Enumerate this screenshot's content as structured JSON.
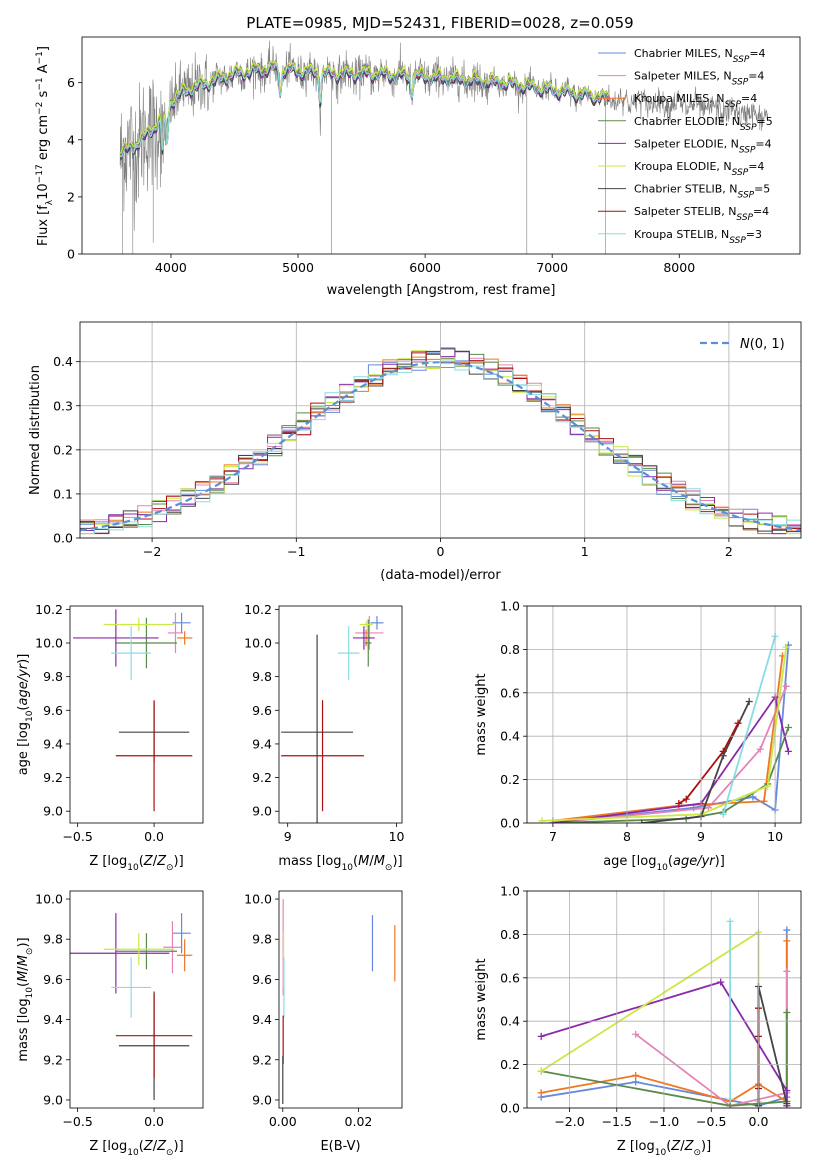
{
  "title": "PLATE=0985, MJD=52431, FIBERID=0028, z=0.059",
  "models": [
    {
      "id": "cm",
      "name": "Chabrier MILES",
      "nssp": "4",
      "color": "#6688dd"
    },
    {
      "id": "sm",
      "name": "Salpeter MILES",
      "nssp": "4",
      "color": "#e583b8"
    },
    {
      "id": "km",
      "name": "Kroupa MILES",
      "nssp": "4",
      "color": "#ee7722"
    },
    {
      "id": "ce",
      "name": "Chabrier ELODIE",
      "nssp": "5",
      "color": "#5a8a4a"
    },
    {
      "id": "se",
      "name": "Salpeter ELODIE",
      "nssp": "4",
      "color": "#8a2aaa"
    },
    {
      "id": "ke",
      "name": "Kroupa ELODIE",
      "nssp": "4",
      "color": "#cce844"
    },
    {
      "id": "cs",
      "name": "Chabrier STELIB",
      "nssp": "5",
      "color": "#444444"
    },
    {
      "id": "ss",
      "name": "Salpeter STELIB",
      "nssp": "4",
      "color": "#aa1111"
    },
    {
      "id": "ks",
      "name": "Kroupa STELIB",
      "nssp": "3",
      "color": "#88dde0"
    }
  ],
  "chart_data": [
    {
      "type": "line",
      "panel": "spectrum",
      "xlabel": "wavelength [Angstrom, rest frame]",
      "ylabel": "Flux [f_λ 10^-17 erg cm^-2 s^-1 A^-1]",
      "xlim": [
        3300,
        8950
      ],
      "ylim": [
        0,
        7.6
      ],
      "xticks": [
        "4000",
        "5000",
        "6000",
        "7000",
        "8000"
      ],
      "yticks": [
        "0",
        "2",
        "4",
        "6"
      ],
      "data_color": "#808080",
      "continuum": {
        "x": [
          3600,
          3750,
          3900,
          4000,
          4100,
          4300,
          4500,
          4800,
          5000,
          5300,
          5600,
          6000,
          6300,
          6600,
          6900,
          7200,
          7500,
          7800,
          8100,
          8400,
          8700
        ],
        "y": [
          3.5,
          3.9,
          4.6,
          5.3,
          5.7,
          6.0,
          6.3,
          6.5,
          6.4,
          6.3,
          6.3,
          6.2,
          6.1,
          6.0,
          5.8,
          5.6,
          5.4,
          5.3,
          5.2,
          5.0,
          4.8
        ]
      },
      "features": [
        {
          "x": 3933,
          "depth": 1.3
        },
        {
          "x": 3968,
          "depth": 1.2
        },
        {
          "x": 4861,
          "depth": 0.8
        },
        {
          "x": 5175,
          "depth": 0.9
        },
        {
          "x": 5895,
          "depth": 0.6
        }
      ],
      "noise_spikes": [
        {
          "x": 3620,
          "y": 0
        },
        {
          "x": 3700,
          "y": 0
        },
        {
          "x": 3860,
          "y": 0.4
        },
        {
          "x": 5265,
          "y": 0
        },
        {
          "x": 6800,
          "y": 0
        },
        {
          "x": 7420,
          "y": 0
        }
      ],
      "model_offsets": [
        0.0,
        0.05,
        -0.05,
        0.08,
        -0.08,
        0.12,
        -0.1,
        0.03,
        -0.03
      ]
    },
    {
      "type": "histogram",
      "panel": "residuals",
      "xlabel": "(data-model)/error",
      "ylabel": "Normed distribution",
      "xlim": [
        -2.5,
        2.5
      ],
      "ylim": [
        0,
        0.49
      ],
      "xticks": [
        "−2",
        "−1",
        "0",
        "1",
        "2"
      ],
      "yticks": [
        "0.0",
        "0.1",
        "0.2",
        "0.3",
        "0.4"
      ],
      "bin_width": 0.1,
      "gaussian_label": "N(0,1)",
      "gaussian_color": "#5b8fd6"
    },
    {
      "type": "scatter",
      "panel": "age-vs-Z",
      "xlabel": "Z [log10(Z/Z⊙)]",
      "ylabel": "age [log10(age/yr)]",
      "xlim": [
        -0.55,
        0.32
      ],
      "ylim": [
        8.93,
        10.22
      ],
      "xticks": [
        "−0.5",
        "0.0"
      ],
      "yticks": [
        "9.0",
        "9.2",
        "9.4",
        "9.6",
        "9.8",
        "10.0",
        "10.2"
      ],
      "points": [
        {
          "m": "cm",
          "x": 0.18,
          "y": 10.12,
          "xerr": 0.06,
          "yerr": 0.06
        },
        {
          "m": "sm",
          "x": 0.14,
          "y": 10.06,
          "xerr": 0.05,
          "yerr": 0.12
        },
        {
          "m": "km",
          "x": 0.2,
          "y": 10.03,
          "xerr": 0.05,
          "yerr": 0.04
        },
        {
          "m": "ce",
          "x": -0.05,
          "y": 10.0,
          "xerr": 0.2,
          "yerr": 0.15
        },
        {
          "m": "se",
          "x": -0.25,
          "y": 10.03,
          "xerr": 0.28,
          "yerr": 0.17
        },
        {
          "m": "ke",
          "x": -0.1,
          "y": 10.11,
          "xerr": 0.23,
          "yerr": 0.04
        },
        {
          "m": "cs",
          "x": 0.0,
          "y": 9.47,
          "xerr": 0.23,
          "yerr": 0.18
        },
        {
          "m": "ss",
          "x": 0.0,
          "y": 9.33,
          "xerr": 0.25,
          "yerr": 0.33
        },
        {
          "m": "ks",
          "x": -0.15,
          "y": 9.94,
          "xerr": 0.13,
          "yerr": 0.16
        }
      ]
    },
    {
      "type": "scatter",
      "panel": "age-vs-mass",
      "xlabel": "mass [log10(M/M⊙)]",
      "ylabel": "",
      "xlim": [
        8.92,
        10.05
      ],
      "ylim": [
        8.93,
        10.22
      ],
      "xticks": [
        "9",
        "10"
      ],
      "yticks": [
        "9.0",
        "9.2",
        "9.4",
        "9.6",
        "9.8",
        "10.0",
        "10.2"
      ],
      "points": [
        {
          "m": "cm",
          "x": 9.82,
          "y": 10.12,
          "xerr": 0.06,
          "yerr": 0.04
        },
        {
          "m": "sm",
          "x": 9.75,
          "y": 10.06,
          "xerr": 0.13,
          "yerr": 0.1
        },
        {
          "m": "km",
          "x": 9.72,
          "y": 10.03,
          "xerr": 0.04,
          "yerr": 0.05
        },
        {
          "m": "ce",
          "x": 9.74,
          "y": 10.0,
          "xerr": 0.03,
          "yerr": 0.14
        },
        {
          "m": "se",
          "x": 9.7,
          "y": 10.03,
          "xerr": 0.1,
          "yerr": 0.07
        },
        {
          "m": "ke",
          "x": 9.72,
          "y": 10.11,
          "xerr": 0.06,
          "yerr": 0.02
        },
        {
          "m": "cs",
          "x": 9.27,
          "y": 9.47,
          "xerr": 0.33,
          "yerr": 0.58
        },
        {
          "m": "ss",
          "x": 9.32,
          "y": 9.33,
          "xerr": 0.38,
          "yerr": 0.33
        },
        {
          "m": "ks",
          "x": 9.56,
          "y": 9.94,
          "xerr": 0.1,
          "yerr": 0.16
        }
      ]
    },
    {
      "type": "line",
      "panel": "mass-weight-vs-age",
      "xlabel": "age [log10(age/yr)]",
      "ylabel": "mass weight",
      "xlim": [
        6.65,
        10.35
      ],
      "ylim": [
        0,
        1.0
      ],
      "xticks": [
        "7",
        "8",
        "9",
        "10"
      ],
      "yticks": [
        "0.0",
        "0.2",
        "0.4",
        "0.6",
        "0.8",
        "1.0"
      ],
      "series": [
        {
          "m": "cm",
          "x": [
            7.0,
            8.9,
            9.7,
            10.0,
            10.18
          ],
          "y": [
            0.0,
            0.07,
            0.12,
            0.06,
            0.82
          ]
        },
        {
          "m": "sm",
          "x": [
            7.0,
            9.1,
            9.8,
            10.15
          ],
          "y": [
            0.0,
            0.07,
            0.34,
            0.63
          ]
        },
        {
          "m": "km",
          "x": [
            7.0,
            8.7,
            9.85,
            10.1
          ],
          "y": [
            0.01,
            0.08,
            0.1,
            0.77
          ]
        },
        {
          "m": "ce",
          "x": [
            7.0,
            8.8,
            9.3,
            9.9,
            10.18
          ],
          "y": [
            0.0,
            0.02,
            0.05,
            0.18,
            0.44
          ]
        },
        {
          "m": "se",
          "x": [
            7.0,
            9.0,
            10.0,
            10.18
          ],
          "y": [
            0.0,
            0.09,
            0.58,
            0.33
          ]
        },
        {
          "m": "ke",
          "x": [
            6.85,
            9.0,
            9.9,
            10.15
          ],
          "y": [
            0.01,
            0.04,
            0.17,
            0.81
          ]
        },
        {
          "m": "cs",
          "x": [
            8.2,
            9.0,
            9.3,
            9.65
          ],
          "y": [
            0.0,
            0.03,
            0.31,
            0.56
          ]
        },
        {
          "m": "ss",
          "x": [
            8.7,
            8.8,
            9.3,
            9.5
          ],
          "y": [
            0.09,
            0.11,
            0.33,
            0.46
          ]
        },
        {
          "m": "ks",
          "x": [
            9.3,
            10.0
          ],
          "y": [
            0.04,
            0.86
          ]
        }
      ]
    },
    {
      "type": "scatter",
      "panel": "mass-vs-Z",
      "xlabel": "Z [log10(Z/Z⊙)]",
      "ylabel": "mass [log10(M/M⊙)]",
      "xlim": [
        -0.55,
        0.32
      ],
      "ylim": [
        8.96,
        10.04
      ],
      "xticks": [
        "−0.5",
        "0.0"
      ],
      "yticks": [
        "9.0",
        "9.2",
        "9.4",
        "9.6",
        "9.8",
        "10.0"
      ],
      "points": [
        {
          "m": "cm",
          "x": 0.18,
          "y": 9.83,
          "xerr": 0.06,
          "yerr": 0.1
        },
        {
          "m": "sm",
          "x": 0.12,
          "y": 9.76,
          "xerr": 0.06,
          "yerr": 0.13
        },
        {
          "m": "km",
          "x": 0.2,
          "y": 9.72,
          "xerr": 0.05,
          "yerr": 0.08
        },
        {
          "m": "ce",
          "x": -0.05,
          "y": 9.74,
          "xerr": 0.2,
          "yerr": 0.09
        },
        {
          "m": "se",
          "x": -0.25,
          "y": 9.73,
          "xerr": 0.35,
          "yerr": 0.2
        },
        {
          "m": "ke",
          "x": -0.1,
          "y": 9.75,
          "xerr": 0.23,
          "yerr": 0.08
        },
        {
          "m": "cs",
          "x": 0.0,
          "y": 9.27,
          "xerr": 0.23,
          "yerr": 0.27
        },
        {
          "m": "ss",
          "x": 0.0,
          "y": 9.32,
          "xerr": 0.25,
          "yerr": 0.21
        },
        {
          "m": "ks",
          "x": -0.15,
          "y": 9.56,
          "xerr": 0.13,
          "yerr": 0.15
        }
      ]
    },
    {
      "type": "scatter",
      "panel": "mass-vs-ebv",
      "xlabel": "E(B-V)",
      "ylabel": "",
      "xlim": [
        -0.001,
        0.0315
      ],
      "ylim": [
        8.96,
        10.04
      ],
      "xticks": [
        "0.00",
        "0.02"
      ],
      "yticks": [
        "9.0",
        "9.2",
        "9.4",
        "9.6",
        "9.8",
        "10.0"
      ],
      "points": [
        {
          "m": "cm",
          "x": 0.0237,
          "y": 9.78,
          "xerr": 0,
          "yerr": 0.14
        },
        {
          "m": "km",
          "x": 0.0296,
          "y": 9.73,
          "xerr": 0,
          "yerr": 0.14
        },
        {
          "m": "sm",
          "x": 0.0001,
          "y": 9.76,
          "xerr": 0,
          "yerr": 0.24
        },
        {
          "m": "ke",
          "x": 0.0002,
          "y": 9.7,
          "xerr": 0,
          "yerr": 0.14
        },
        {
          "m": "ks",
          "x": 0.0003,
          "y": 9.56,
          "xerr": 0,
          "yerr": 0.15
        },
        {
          "m": "ss",
          "x": 0.0001,
          "y": 9.3,
          "xerr": 0,
          "yerr": 0.12
        },
        {
          "m": "cs",
          "x": 0.0,
          "y": 9.1,
          "xerr": 0,
          "yerr": 0.12
        }
      ]
    },
    {
      "type": "line",
      "panel": "mass-weight-vs-Z",
      "xlabel": "Z [log10(Z/Z⊙)]",
      "ylabel": "mass weight",
      "xlim": [
        -2.45,
        0.45
      ],
      "ylim": [
        0,
        1.0
      ],
      "xticks": [
        "−2.0",
        "−1.5",
        "−1.0",
        "−0.5",
        "0.0"
      ],
      "yticks": [
        "0.0",
        "0.2",
        "0.4",
        "0.6",
        "0.8",
        "1.0"
      ],
      "series": [
        {
          "m": "cm",
          "x": [
            -2.3,
            -1.3,
            0.0,
            0.3,
            0.3
          ],
          "y": [
            0.05,
            0.12,
            0.01,
            0.05,
            0.82
          ]
        },
        {
          "m": "km",
          "x": [
            -2.3,
            -1.3,
            -0.3,
            0.0,
            0.3,
            0.3
          ],
          "y": [
            0.07,
            0.15,
            0.03,
            0.11,
            0.03,
            0.77
          ]
        },
        {
          "m": "sm",
          "x": [
            -1.3,
            -0.3,
            0.3,
            0.3
          ],
          "y": [
            0.34,
            0.01,
            0.07,
            0.63
          ]
        },
        {
          "m": "ce",
          "x": [
            -2.3,
            -0.3,
            0.0,
            0.3,
            0.3
          ],
          "y": [
            0.17,
            0.01,
            0.02,
            0.03,
            0.44
          ]
        },
        {
          "m": "se",
          "x": [
            -2.3,
            -0.4,
            0.3,
            0.3
          ],
          "y": [
            0.33,
            0.58,
            0.08,
            0.01
          ]
        },
        {
          "m": "ke",
          "x": [
            -2.3,
            0.0,
            0.0
          ],
          "y": [
            0.17,
            0.81,
            0.03
          ]
        },
        {
          "m": "cs",
          "x": [
            0.0,
            0.0,
            0.3
          ],
          "y": [
            0.01,
            0.56,
            0.02
          ]
        },
        {
          "m": "ss",
          "x": [
            0.0,
            0.0,
            0.0
          ],
          "y": [
            0.09,
            0.33,
            0.46
          ]
        },
        {
          "m": "ks",
          "x": [
            -0.3,
            -0.3
          ],
          "y": [
            0.04,
            0.86
          ]
        }
      ]
    }
  ]
}
